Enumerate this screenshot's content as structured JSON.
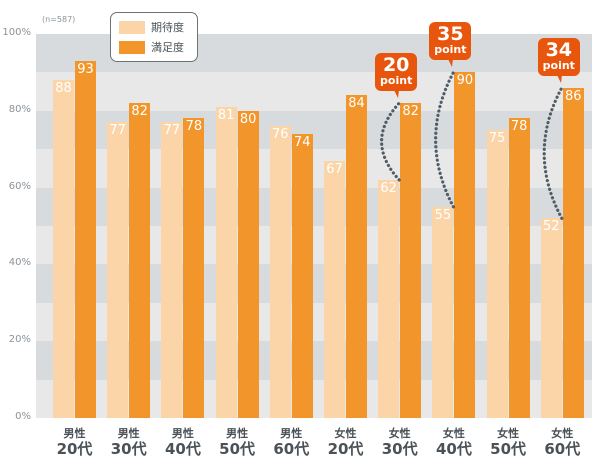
{
  "chart_data": {
    "type": "bar",
    "title": "",
    "sample_note": "(n=587)",
    "xlabel": "",
    "ylabel": "",
    "ylim": [
      0,
      100
    ],
    "y_ticks": [
      "0%",
      "20%",
      "40%",
      "60%",
      "80%",
      "100%"
    ],
    "categories": [
      {
        "line1": "男性",
        "line2": "20代"
      },
      {
        "line1": "男性",
        "line2": "30代"
      },
      {
        "line1": "男性",
        "line2": "40代"
      },
      {
        "line1": "男性",
        "line2": "50代"
      },
      {
        "line1": "男性",
        "line2": "60代"
      },
      {
        "line1": "女性",
        "line2": "20代"
      },
      {
        "line1": "女性",
        "line2": "30代"
      },
      {
        "line1": "女性",
        "line2": "40代"
      },
      {
        "line1": "女性",
        "line2": "50代"
      },
      {
        "line1": "女性",
        "line2": "60代"
      }
    ],
    "series": [
      {
        "name": "期待度",
        "color": "#fbd5a8",
        "values": [
          88,
          77,
          77,
          81,
          76,
          67,
          62,
          55,
          75,
          52
        ]
      },
      {
        "name": "満足度",
        "color": "#f2952b",
        "values": [
          93,
          82,
          78,
          80,
          74,
          84,
          82,
          90,
          78,
          86
        ]
      }
    ],
    "annotations": [
      {
        "category_index": 6,
        "value": "20",
        "unit": "point",
        "from": 62,
        "to": 82
      },
      {
        "category_index": 7,
        "value": "35",
        "unit": "point",
        "from": 55,
        "to": 90
      },
      {
        "category_index": 9,
        "value": "34",
        "unit": "point",
        "from": 52,
        "to": 86
      }
    ],
    "grid": true,
    "legend_position": "top-left",
    "colors": {
      "band_dark": "#d8dbdd",
      "band_light": "#e8e8e8",
      "callout": "#e8560d",
      "connector": "#4f5d66"
    }
  }
}
